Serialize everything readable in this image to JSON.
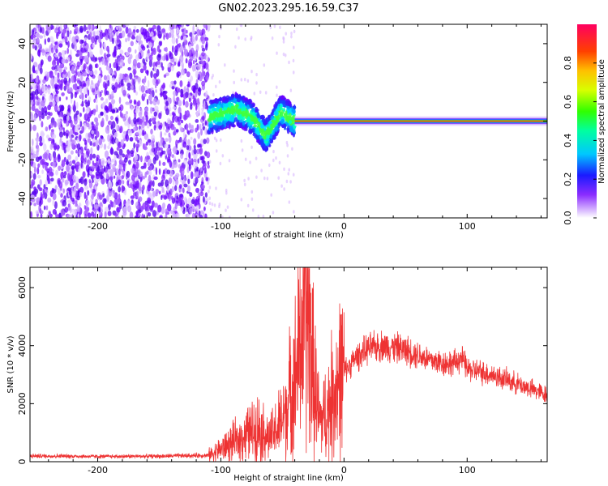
{
  "title": "GN02.2023.295.16.59.C37",
  "chart_data": [
    {
      "type": "heatmap",
      "xlabel": "Height of straight line (km)",
      "ylabel": "Frequency (Hz)",
      "xlim": [
        -255,
        165
      ],
      "ylim": [
        -50,
        50
      ],
      "x_ticks": [
        -200,
        -100,
        0,
        100
      ],
      "y_ticks": [
        -40,
        -20,
        0,
        20,
        40
      ],
      "colorbar": {
        "label": "Normalized spectral amplitude",
        "range": [
          0,
          1
        ],
        "ticks": [
          0.0,
          0.2,
          0.4,
          0.6,
          0.8
        ],
        "colormap": "gist_rainbow_r"
      },
      "noise_region_x": [
        -255,
        -110
      ],
      "line_segments": [
        {
          "x": [
            -110,
            -40
          ],
          "center_hz": [
            2,
            4,
            6,
            2,
            -8,
            5,
            0
          ],
          "spread_hz": 8
        },
        {
          "x": [
            -40,
            165
          ],
          "center_hz": [
            0,
            0
          ],
          "spread_hz": 1
        }
      ]
    },
    {
      "type": "line",
      "xlabel": "Height of straight line (km)",
      "ylabel": "SNR (10 * v/v)",
      "xlim": [
        -255,
        165
      ],
      "ylim": [
        0,
        6700
      ],
      "x_ticks": [
        -200,
        -100,
        0,
        100
      ],
      "y_ticks": [
        0,
        2000,
        4000,
        6000
      ],
      "color": "#ee3333",
      "x": [
        -255,
        -200,
        -150,
        -110,
        -95,
        -80,
        -70,
        -60,
        -50,
        -40,
        -35,
        -30,
        -25,
        -20,
        -15,
        -10,
        -5,
        0,
        10,
        20,
        30,
        40,
        50,
        60,
        70,
        80,
        90,
        95,
        100,
        120,
        140,
        165
      ],
      "y": [
        200,
        180,
        190,
        220,
        550,
        900,
        1200,
        800,
        1400,
        2800,
        4200,
        5600,
        3000,
        1400,
        1600,
        2200,
        2800,
        3100,
        3600,
        3900,
        4000,
        3950,
        3850,
        3700,
        3500,
        3400,
        3400,
        3600,
        3200,
        3000,
        2700,
        2300
      ]
    }
  ]
}
